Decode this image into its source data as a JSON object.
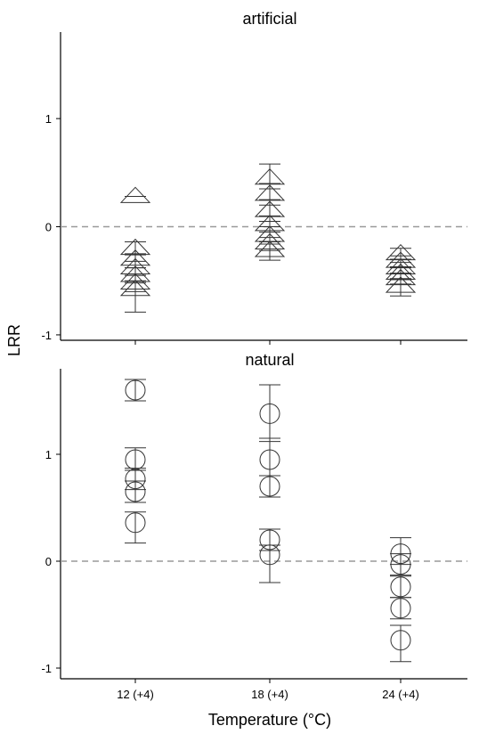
{
  "chart_data": {
    "type": "scatter",
    "xlabel": "Temperature (°C)",
    "ylabel": "LRR",
    "categories": [
      "12 (+4)",
      "18 (+4)",
      "24 (+4)"
    ],
    "reference_line": 0,
    "panels": [
      {
        "title": "artificial",
        "marker": "triangle",
        "ylim": [
          -1.05,
          1.8
        ],
        "yticks": [
          1,
          0,
          -1
        ],
        "points": [
          {
            "category": "12 (+4)",
            "y": 0.28,
            "lo": 0.28,
            "hi": 0.28
          },
          {
            "category": "12 (+4)",
            "y": -0.2,
            "lo": -0.26,
            "hi": -0.14
          },
          {
            "category": "12 (+4)",
            "y": -0.3,
            "lo": -0.38,
            "hi": -0.25
          },
          {
            "category": "12 (+4)",
            "y": -0.38,
            "lo": -0.45,
            "hi": -0.32
          },
          {
            "category": "12 (+4)",
            "y": -0.45,
            "lo": -0.52,
            "hi": -0.38
          },
          {
            "category": "12 (+4)",
            "y": -0.52,
            "lo": -0.6,
            "hi": -0.45
          },
          {
            "category": "12 (+4)",
            "y": -0.58,
            "lo": -0.79,
            "hi": -0.5
          },
          {
            "category": "18 (+4)",
            "y": 0.45,
            "lo": 0.35,
            "hi": 0.58
          },
          {
            "category": "18 (+4)",
            "y": 0.3,
            "lo": 0.2,
            "hi": 0.4
          },
          {
            "category": "18 (+4)",
            "y": 0.15,
            "lo": 0.05,
            "hi": 0.25
          },
          {
            "category": "18 (+4)",
            "y": 0.02,
            "lo": -0.05,
            "hi": 0.1
          },
          {
            "category": "18 (+4)",
            "y": -0.08,
            "lo": -0.14,
            "hi": 0.0
          },
          {
            "category": "18 (+4)",
            "y": -0.15,
            "lo": -0.22,
            "hi": -0.1
          },
          {
            "category": "18 (+4)",
            "y": -0.22,
            "lo": -0.31,
            "hi": -0.16
          },
          {
            "category": "24 (+4)",
            "y": -0.25,
            "lo": -0.3,
            "hi": -0.2
          },
          {
            "category": "24 (+4)",
            "y": -0.32,
            "lo": -0.37,
            "hi": -0.27
          },
          {
            "category": "24 (+4)",
            "y": -0.38,
            "lo": -0.43,
            "hi": -0.33
          },
          {
            "category": "24 (+4)",
            "y": -0.43,
            "lo": -0.49,
            "hi": -0.38
          },
          {
            "category": "24 (+4)",
            "y": -0.48,
            "lo": -0.53,
            "hi": -0.43
          },
          {
            "category": "24 (+4)",
            "y": -0.55,
            "lo": -0.64,
            "hi": -0.48
          }
        ]
      },
      {
        "title": "natural",
        "marker": "circle",
        "ylim": [
          -1.1,
          1.8
        ],
        "yticks": [
          1,
          0,
          -1
        ],
        "points": [
          {
            "category": "12 (+4)",
            "y": 1.6,
            "lo": 1.5,
            "hi": 1.7
          },
          {
            "category": "12 (+4)",
            "y": 0.95,
            "lo": 0.85,
            "hi": 1.06
          },
          {
            "category": "12 (+4)",
            "y": 0.77,
            "lo": 0.67,
            "hi": 0.87
          },
          {
            "category": "12 (+4)",
            "y": 0.65,
            "lo": 0.55,
            "hi": 0.75
          },
          {
            "category": "12 (+4)",
            "y": 0.36,
            "lo": 0.17,
            "hi": 0.46
          },
          {
            "category": "18 (+4)",
            "y": 1.38,
            "lo": 1.12,
            "hi": 1.65
          },
          {
            "category": "18 (+4)",
            "y": 0.95,
            "lo": 0.8,
            "hi": 1.15
          },
          {
            "category": "18 (+4)",
            "y": 0.7,
            "lo": 0.6,
            "hi": 0.8
          },
          {
            "category": "18 (+4)",
            "y": 0.2,
            "lo": 0.1,
            "hi": 0.3
          },
          {
            "category": "18 (+4)",
            "y": 0.06,
            "lo": -0.2,
            "hi": 0.15
          },
          {
            "category": "24 (+4)",
            "y": 0.07,
            "lo": -0.03,
            "hi": 0.22
          },
          {
            "category": "24 (+4)",
            "y": -0.03,
            "lo": -0.13,
            "hi": 0.07
          },
          {
            "category": "24 (+4)",
            "y": -0.24,
            "lo": -0.34,
            "hi": -0.14
          },
          {
            "category": "24 (+4)",
            "y": -0.44,
            "lo": -0.54,
            "hi": -0.34
          },
          {
            "category": "24 (+4)",
            "y": -0.74,
            "lo": -0.94,
            "hi": -0.6
          }
        ]
      }
    ]
  }
}
